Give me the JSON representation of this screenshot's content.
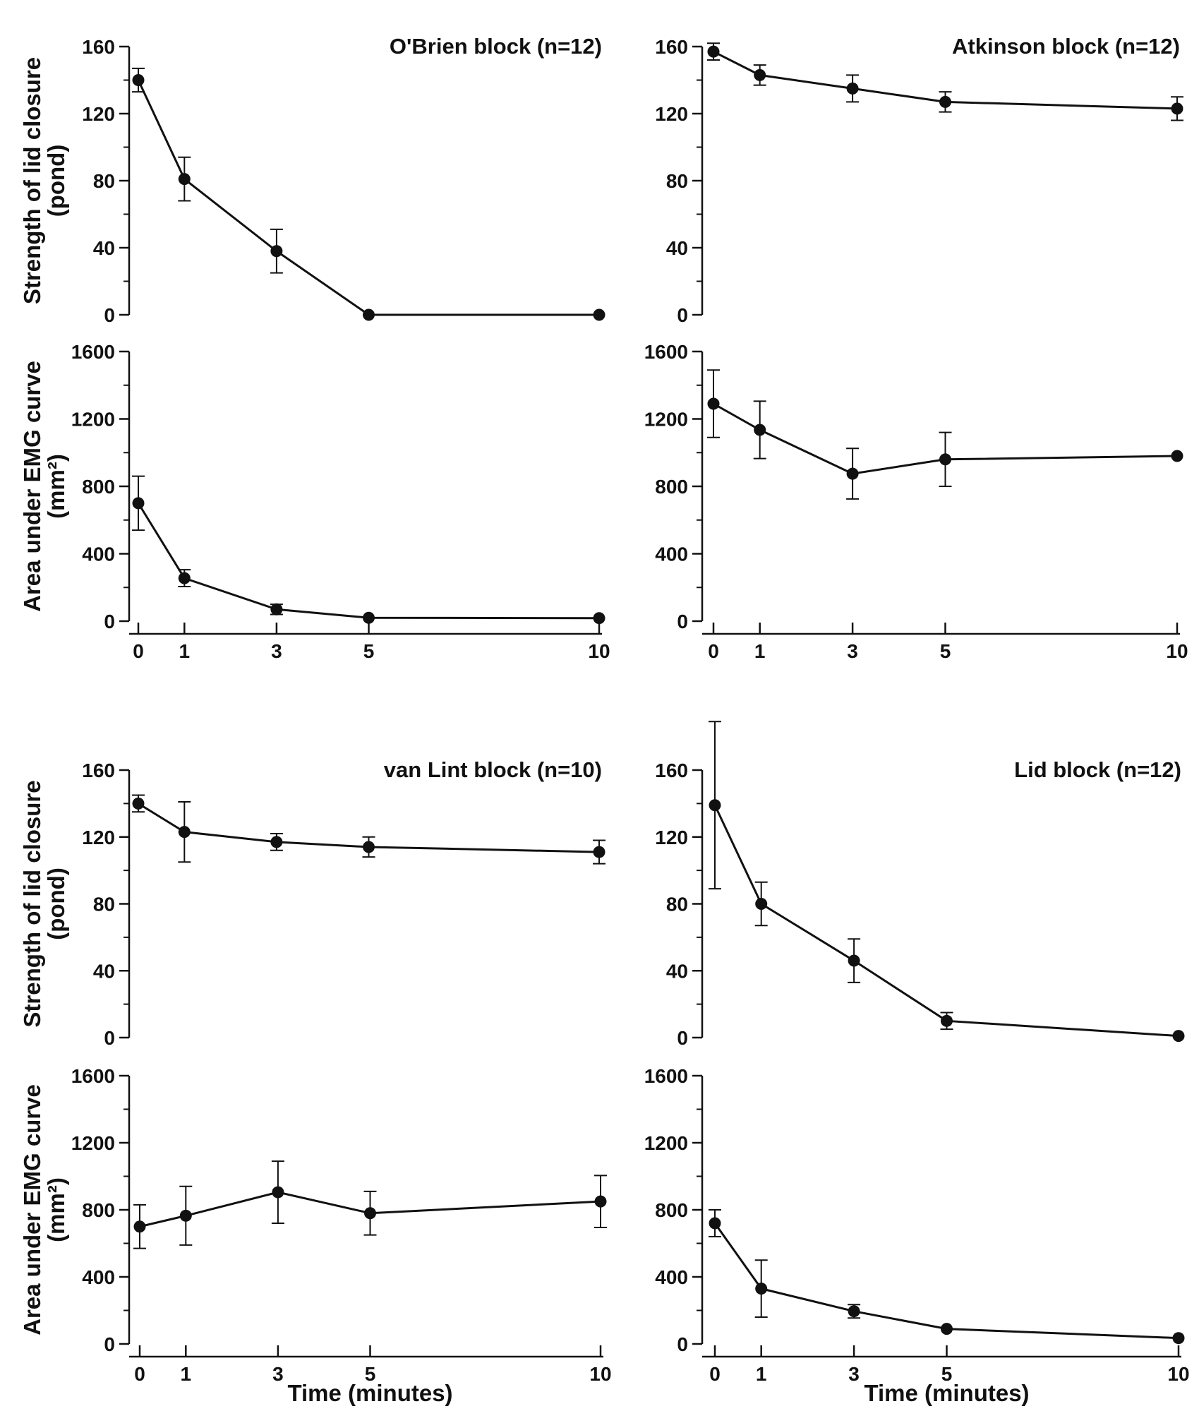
{
  "chart_data": [
    {
      "type": "line",
      "title": "O'Brien block (n=12)",
      "ylabel": "Strength of lid closure",
      "ylabel2": "(pond)",
      "xlabel": "",
      "x": [
        0,
        1,
        3,
        5,
        10
      ],
      "values": [
        140,
        81,
        38,
        0,
        0
      ],
      "err": [
        7,
        13,
        13,
        0,
        0
      ],
      "ylim": [
        0,
        160
      ],
      "yticks": [
        "0",
        "40",
        "80",
        "120",
        "160"
      ],
      "xticks": [],
      "xlim": [
        0,
        10
      ],
      "color": "#111111"
    },
    {
      "type": "line",
      "title": "Atkinson block (n=12)",
      "ylabel": "",
      "ylabel2": "",
      "xlabel": "",
      "x": [
        0,
        1,
        3,
        5,
        10
      ],
      "values": [
        157,
        143,
        135,
        127,
        123
      ],
      "err": [
        5,
        6,
        8,
        6,
        7
      ],
      "ylim": [
        0,
        160
      ],
      "yticks": [
        "0",
        "40",
        "80",
        "120",
        "160"
      ],
      "xticks": [],
      "xlim": [
        0,
        10
      ],
      "color": "#111111"
    },
    {
      "type": "line",
      "title": "",
      "ylabel": "Area under EMG curve",
      "ylabel2": "(mm²)",
      "xlabel": "",
      "x": [
        0,
        1,
        3,
        5,
        10
      ],
      "values": [
        700,
        255,
        70,
        20,
        18
      ],
      "err": [
        160,
        50,
        30,
        0,
        0
      ],
      "ylim": [
        0,
        1600
      ],
      "yticks": [
        "0",
        "400",
        "800",
        "1200",
        "1600"
      ],
      "xticks": [
        "0",
        "1",
        "3",
        "5",
        "10"
      ],
      "xlim": [
        0,
        10
      ],
      "color": "#111111"
    },
    {
      "type": "line",
      "title": "",
      "ylabel": "",
      "ylabel2": "",
      "xlabel": "",
      "x": [
        0,
        1,
        3,
        5,
        10
      ],
      "values": [
        1290,
        1135,
        875,
        960,
        980
      ],
      "err": [
        200,
        170,
        150,
        160,
        0
      ],
      "ylim": [
        0,
        1600
      ],
      "yticks": [
        "0",
        "400",
        "800",
        "1200",
        "1600"
      ],
      "xticks": [
        "0",
        "1",
        "3",
        "5",
        "10"
      ],
      "xlim": [
        0,
        10
      ],
      "color": "#111111"
    },
    {
      "type": "line",
      "title": "van Lint block (n=10)",
      "ylabel": "Strength of lid closure",
      "ylabel2": "(pond)",
      "xlabel": "",
      "x": [
        0,
        1,
        3,
        5,
        10
      ],
      "values": [
        140,
        123,
        117,
        114,
        111
      ],
      "err": [
        5,
        18,
        5,
        6,
        7
      ],
      "ylim": [
        0,
        160
      ],
      "yticks": [
        "0",
        "40",
        "80",
        "120",
        "160"
      ],
      "xticks": [],
      "xlim": [
        0,
        10
      ],
      "color": "#111111"
    },
    {
      "type": "line",
      "title": "Lid block (n=12)",
      "ylabel": "",
      "ylabel2": "",
      "xlabel": "",
      "x": [
        0,
        1,
        3,
        5,
        10
      ],
      "values": [
        139,
        80,
        46,
        10,
        1
      ],
      "err": [
        50,
        13,
        13,
        5,
        0
      ],
      "ylim": [
        0,
        160
      ],
      "yticks": [
        "0",
        "40",
        "80",
        "120",
        "160"
      ],
      "xticks": [],
      "xlim": [
        0,
        10
      ],
      "color": "#111111"
    },
    {
      "type": "line",
      "title": "",
      "ylabel": "Area under EMG curve",
      "ylabel2": "(mm²)",
      "xlabel": "Time (minutes)",
      "x": [
        0,
        1,
        3,
        5,
        10
      ],
      "values": [
        700,
        765,
        905,
        780,
        850
      ],
      "err": [
        130,
        175,
        185,
        130,
        155
      ],
      "ylim": [
        0,
        1600
      ],
      "yticks": [
        "0",
        "400",
        "800",
        "1200",
        "1600"
      ],
      "xticks": [
        "0",
        "1",
        "3",
        "5",
        "10"
      ],
      "xlim": [
        0,
        10
      ],
      "color": "#111111"
    },
    {
      "type": "line",
      "title": "",
      "ylabel": "",
      "ylabel2": "",
      "xlabel": "Time (minutes)",
      "x": [
        0,
        1,
        3,
        5,
        10
      ],
      "values": [
        720,
        330,
        195,
        90,
        35
      ],
      "err": [
        80,
        170,
        40,
        0,
        0
      ],
      "ylim": [
        0,
        1600
      ],
      "yticks": [
        "0",
        "400",
        "800",
        "1200",
        "1600"
      ],
      "xticks": [
        "0",
        "1",
        "3",
        "5",
        "10"
      ],
      "xlim": [
        0,
        10
      ],
      "color": "#111111"
    }
  ]
}
